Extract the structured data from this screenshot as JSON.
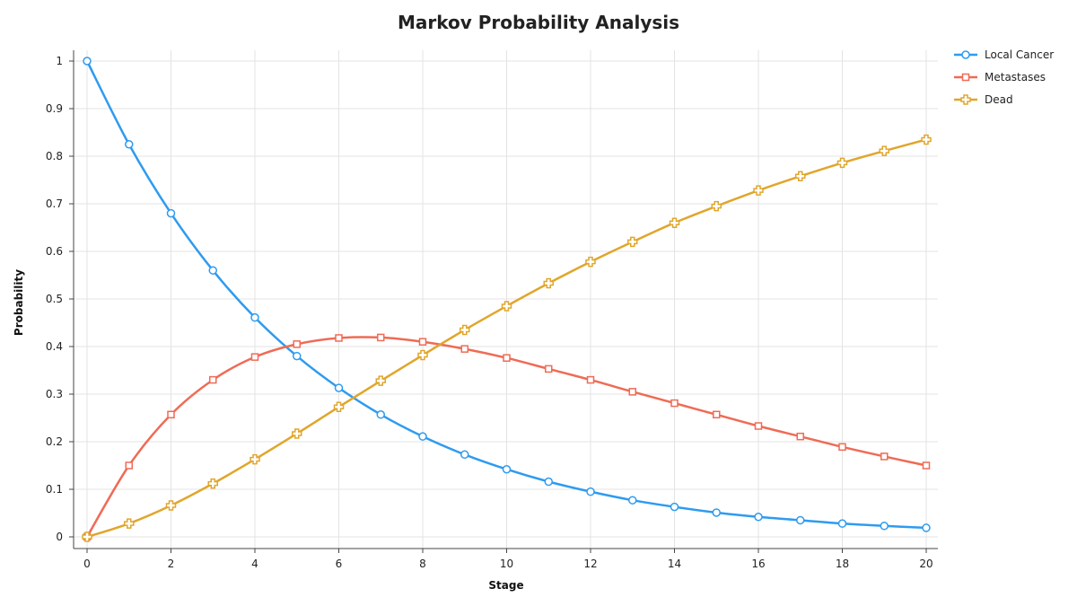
{
  "chart_data": {
    "type": "line",
    "title": "Markov Probability Analysis",
    "xlabel": "Stage",
    "ylabel": "Probability",
    "xlim": [
      0,
      20
    ],
    "ylim": [
      0,
      1
    ],
    "x_ticks": [
      0,
      2,
      4,
      6,
      8,
      10,
      12,
      14,
      16,
      18,
      20
    ],
    "x_tick_labels": [
      "0",
      "2",
      "4",
      "6",
      "8",
      "10",
      "12",
      "14",
      "16",
      "18",
      "20"
    ],
    "y_ticks": [
      0,
      0.1,
      0.2,
      0.3,
      0.4,
      0.5,
      0.6,
      0.7,
      0.8,
      0.9,
      1
    ],
    "y_tick_labels": [
      "0",
      "0.1",
      "0.2",
      "0.3",
      "0.4",
      "0.5",
      "0.6",
      "0.7",
      "0.8",
      "0.9",
      "1"
    ],
    "grid": true,
    "legend_position": "top-right",
    "x": [
      0,
      1,
      2,
      3,
      4,
      5,
      6,
      7,
      8,
      9,
      10,
      11,
      12,
      13,
      14,
      15,
      16,
      17,
      18,
      19,
      20
    ],
    "series": [
      {
        "name": "Local Cancer",
        "color": "#2e9bf0",
        "marker": "circle",
        "values": [
          1.0,
          0.825,
          0.68,
          0.56,
          0.461,
          0.38,
          0.313,
          0.257,
          0.211,
          0.173,
          0.142,
          0.116,
          0.095,
          0.077,
          0.063,
          0.051,
          0.042,
          0.035,
          0.028,
          0.023,
          0.019
        ]
      },
      {
        "name": "Metastases",
        "color": "#ef6b55",
        "marker": "square",
        "values": [
          0.0,
          0.15,
          0.257,
          0.33,
          0.378,
          0.405,
          0.418,
          0.419,
          0.41,
          0.395,
          0.376,
          0.353,
          0.33,
          0.305,
          0.281,
          0.257,
          0.233,
          0.211,
          0.189,
          0.169,
          0.15
        ]
      },
      {
        "name": "Dead",
        "color": "#e0a62b",
        "marker": "cross",
        "values": [
          0.0,
          0.028,
          0.066,
          0.112,
          0.163,
          0.217,
          0.273,
          0.328,
          0.382,
          0.435,
          0.485,
          0.533,
          0.578,
          0.62,
          0.66,
          0.695,
          0.728,
          0.758,
          0.786,
          0.811,
          0.835
        ]
      }
    ]
  }
}
